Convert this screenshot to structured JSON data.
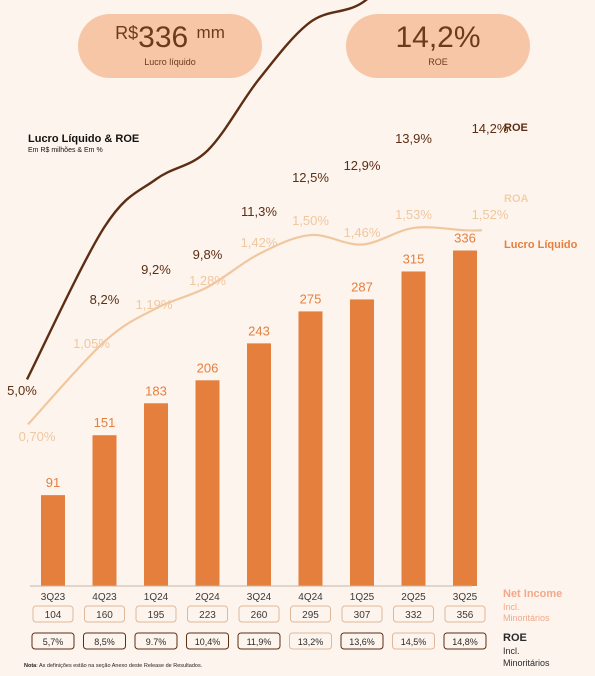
{
  "kpis": [
    {
      "currency": "R$",
      "value": "336",
      "unit": "mm",
      "label": "Lucro líquido"
    },
    {
      "value": "14,2%",
      "label": "ROE"
    }
  ],
  "colors": {
    "background": "#fdf4ed",
    "kpi_bg": "#f6c6a6",
    "bar": "#e57f3e",
    "roe_line": "#5c2e14",
    "roa_line": "#f0c79f",
    "roa_label": "#f3cfaa",
    "net_income_label": "#f2a98b",
    "text_dark": "#5c2e14"
  },
  "chart_data": {
    "type": "bar",
    "title": "Lucro Líquido & ROE",
    "subtitle": "Em R$ milhões & Em %",
    "categories": [
      "3Q23",
      "4Q23",
      "1Q24",
      "2Q24",
      "3Q24",
      "4Q24",
      "1Q25",
      "2Q25",
      "3Q25"
    ],
    "series": [
      {
        "name": "Lucro Líquido",
        "kind": "bar",
        "values": [
          91,
          151,
          183,
          206,
          243,
          275,
          287,
          315,
          336
        ]
      },
      {
        "name": "ROE",
        "kind": "line",
        "values": [
          5.0,
          8.2,
          9.2,
          9.8,
          11.3,
          12.5,
          12.9,
          13.9,
          14.2
        ],
        "labels": [
          "5,0%",
          "8,2%",
          "9,2%",
          "9,8%",
          "11,3%",
          "12,5%",
          "12,9%",
          "13,9%",
          "14,2%"
        ]
      },
      {
        "name": "ROA",
        "kind": "line",
        "values": [
          0.7,
          1.05,
          1.19,
          1.28,
          1.42,
          1.5,
          1.46,
          1.53,
          1.52
        ],
        "labels": [
          "0,70%",
          "1,05%",
          "1,19%",
          "1,28%",
          "1,42%",
          "1,50%",
          "1,46%",
          "1,53%",
          "1,52%"
        ]
      }
    ],
    "bottom_rows": [
      {
        "title": "Net Income",
        "subtitle_lines": [
          "Incl.",
          "Minoritários"
        ],
        "values": [
          "104",
          "160",
          "195",
          "223",
          "260",
          "295",
          "307",
          "332",
          "356"
        ]
      },
      {
        "title": "ROE",
        "subtitle_lines": [
          "Incl.",
          "Minoritários"
        ],
        "values": [
          "5,7%",
          "8,5%",
          "9.7%",
          "10,4%",
          "11,9%",
          "13,2%",
          "13,6%",
          "14,5%",
          "14,8%"
        ]
      }
    ]
  },
  "note": {
    "label": "Nota",
    "text": ": As definições estão na seção Anexo deste Release de Resultados."
  }
}
